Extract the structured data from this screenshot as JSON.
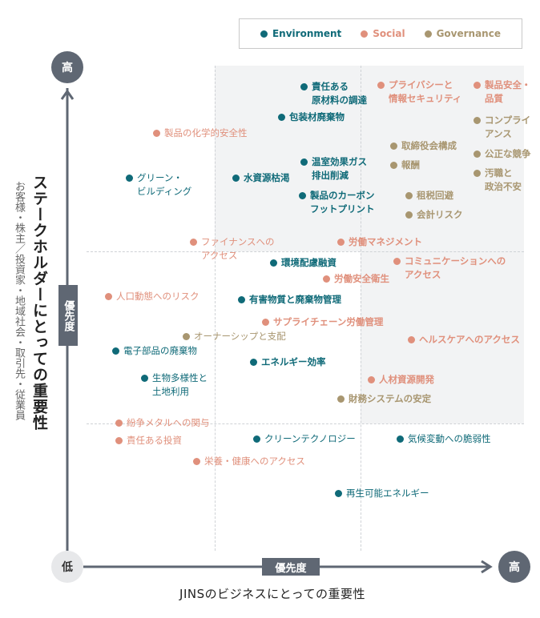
{
  "colors": {
    "environment": "#0f6a78",
    "social": "#e0907c",
    "governance": "#a89670",
    "axis": "#5f6773"
  },
  "legend": [
    {
      "key": "environment",
      "label": "Environment"
    },
    {
      "key": "social",
      "label": "Social"
    },
    {
      "key": "governance",
      "label": "Governance"
    }
  ],
  "y_axis": {
    "high": "高",
    "tag": "優先度",
    "title": "ステークホルダーにとっての重要性",
    "subtitle": "お客様・株主／投資家・地域社会・取引先・従業員"
  },
  "x_axis": {
    "low": "低",
    "high": "高",
    "tag": "優先度",
    "title": "JINSのビジネスにとっての重要性"
  },
  "items": [
    {
      "label": "責任ある\n原材料の調達",
      "cat": "environment",
      "bold": true
    },
    {
      "label": "プライバシーと\n情報セキュリティ",
      "cat": "social",
      "bold": true
    },
    {
      "label": "製品安全・\n品質",
      "cat": "social",
      "bold": true
    },
    {
      "label": "包装材廃棄物",
      "cat": "environment",
      "bold": true
    },
    {
      "label": "コンプライ\nアンス",
      "cat": "governance",
      "bold": true
    },
    {
      "label": "製品の化学的安全性",
      "cat": "social",
      "bold": false
    },
    {
      "label": "取締役会構成",
      "cat": "governance",
      "bold": true
    },
    {
      "label": "公正な競争",
      "cat": "governance",
      "bold": true
    },
    {
      "label": "温室効果ガス\n排出削減",
      "cat": "environment",
      "bold": true
    },
    {
      "label": "報酬",
      "cat": "governance",
      "bold": true
    },
    {
      "label": "汚職と\n政治不安",
      "cat": "governance",
      "bold": true
    },
    {
      "label": "グリーン・\nビルディング",
      "cat": "environment",
      "bold": false
    },
    {
      "label": "水資源枯渇",
      "cat": "environment",
      "bold": true
    },
    {
      "label": "製品のカーボン\nフットプリント",
      "cat": "environment",
      "bold": true
    },
    {
      "label": "租税回避",
      "cat": "governance",
      "bold": true
    },
    {
      "label": "会計リスク",
      "cat": "governance",
      "bold": true
    },
    {
      "label": "ファイナンスへの\nアクセス",
      "cat": "social",
      "bold": false
    },
    {
      "label": "労働マネジメント",
      "cat": "social",
      "bold": true
    },
    {
      "label": "環境配慮融資",
      "cat": "environment",
      "bold": true
    },
    {
      "label": "コミュニケーションへの\nアクセス",
      "cat": "social",
      "bold": true
    },
    {
      "label": "労働安全衛生",
      "cat": "social",
      "bold": true
    },
    {
      "label": "人口動態へのリスク",
      "cat": "social",
      "bold": false
    },
    {
      "label": "有害物質と廃棄物管理",
      "cat": "environment",
      "bold": true
    },
    {
      "label": "サプライチェーン労働管理",
      "cat": "social",
      "bold": true
    },
    {
      "label": "オーナーシップと支配",
      "cat": "governance",
      "bold": false
    },
    {
      "label": "ヘルスケアへのアクセス",
      "cat": "social",
      "bold": true
    },
    {
      "label": "電子部品の廃棄物",
      "cat": "environment",
      "bold": false
    },
    {
      "label": "エネルギー効率",
      "cat": "environment",
      "bold": true
    },
    {
      "label": "生物多様性と\n土地利用",
      "cat": "environment",
      "bold": false
    },
    {
      "label": "人材資源開発",
      "cat": "social",
      "bold": true
    },
    {
      "label": "財務システムの安定",
      "cat": "governance",
      "bold": true
    },
    {
      "label": "紛争メタルへの関与",
      "cat": "social",
      "bold": false
    },
    {
      "label": "責任ある投資",
      "cat": "social",
      "bold": false
    },
    {
      "label": "クリーンテクノロジー",
      "cat": "environment",
      "bold": false
    },
    {
      "label": "気候変動への脆弱性",
      "cat": "environment",
      "bold": false
    },
    {
      "label": "栄養・健康へのアクセス",
      "cat": "social",
      "bold": false
    },
    {
      "label": "再生可能エネルギー",
      "cat": "environment",
      "bold": false
    }
  ]
}
